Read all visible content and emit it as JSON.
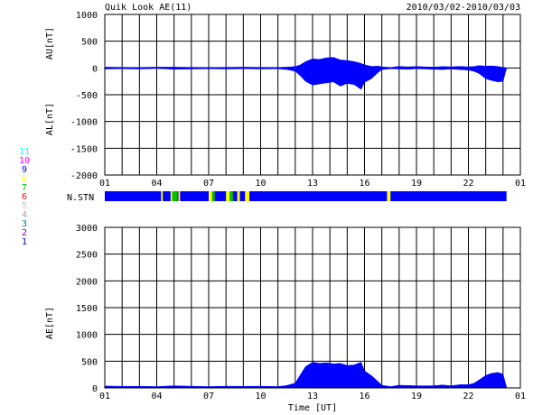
{
  "header": {
    "title": "Quik Look AE(11)",
    "date_range": "2010/03/02-2010/03/03"
  },
  "station_legend": {
    "labels": [
      "11",
      "10",
      "9",
      "8",
      "7",
      "6",
      "5",
      "4",
      "3",
      "2",
      "1"
    ],
    "colors": [
      "#00ffff",
      "#ff00ff",
      "#0000ff",
      "#ffff00",
      "#00c000",
      "#ff0000",
      "#c0c0c0",
      "#a0a0a0",
      "#008080",
      "#800080",
      "#0000c0"
    ]
  },
  "chart_data": [
    {
      "type": "area",
      "name": "AU/AL panel",
      "ylabel_upper": "AU[nT]",
      "ylabel_lower": "AL[nT]",
      "ylim": [
        -2000,
        1000
      ],
      "yticks": [
        1000,
        500,
        0,
        -500,
        -1000,
        -1500,
        -2000
      ],
      "xlim": [
        0,
        24
      ],
      "xticks": [
        "01",
        "04",
        "07",
        "10",
        "13",
        "16",
        "19",
        "22",
        "01"
      ],
      "grid": true,
      "fill_color": "#0000ff",
      "series": [
        {
          "name": "AU",
          "x": [
            0,
            1,
            2,
            3,
            4,
            5,
            6,
            7,
            8,
            9,
            10,
            10.5,
            11,
            11.3,
            11.6,
            12,
            12.4,
            12.8,
            13.2,
            13.6,
            14,
            14.4,
            14.8,
            15,
            15.4,
            15.8,
            16,
            16.5,
            17,
            17.5,
            18,
            18.5,
            19,
            19.5,
            20,
            20.5,
            21,
            21.3,
            21.6,
            22,
            22.3,
            22.7,
            23,
            23.2
          ],
          "values": [
            15,
            12,
            10,
            15,
            15,
            12,
            10,
            12,
            15,
            12,
            10,
            15,
            25,
            60,
            120,
            170,
            160,
            190,
            200,
            150,
            140,
            120,
            85,
            60,
            30,
            35,
            20,
            10,
            30,
            20,
            25,
            20,
            15,
            25,
            20,
            30,
            20,
            25,
            45,
            35,
            40,
            30,
            10,
            5
          ]
        },
        {
          "name": "AL",
          "x": [
            0,
            1,
            2,
            3,
            4,
            5,
            6,
            7,
            8,
            9,
            10,
            10.5,
            11,
            11.3,
            11.6,
            12,
            12.4,
            12.8,
            13.2,
            13.6,
            14,
            14.4,
            14.8,
            15,
            15.4,
            15.8,
            16,
            16.5,
            17,
            17.5,
            18,
            18.5,
            19,
            19.5,
            20,
            20.5,
            21,
            21.3,
            21.6,
            22,
            22.3,
            22.7,
            23,
            23.2
          ],
          "values": [
            -20,
            -15,
            -20,
            -10,
            -25,
            -20,
            -15,
            -20,
            -15,
            -20,
            -15,
            -30,
            -60,
            -150,
            -250,
            -320,
            -300,
            -280,
            -260,
            -340,
            -290,
            -310,
            -400,
            -270,
            -200,
            -80,
            -30,
            -15,
            -20,
            -25,
            -15,
            -20,
            -25,
            -30,
            -20,
            -30,
            -40,
            -60,
            -100,
            -200,
            -230,
            -260,
            -250,
            -10
          ]
        }
      ]
    },
    {
      "type": "bar",
      "name": "N.STN",
      "label": "N.STN",
      "xlim": [
        0,
        24
      ],
      "coverage_end": 23.2,
      "base_color": "#0000ff",
      "segments": [
        {
          "start": 3.25,
          "end": 3.35,
          "color": "#ffff00"
        },
        {
          "start": 3.8,
          "end": 3.9,
          "color": "#ffff00"
        },
        {
          "start": 3.9,
          "end": 4.2,
          "color": "#00c000"
        },
        {
          "start": 4.25,
          "end": 4.35,
          "color": "#ffff00"
        },
        {
          "start": 6.0,
          "end": 6.2,
          "color": "#ffff00"
        },
        {
          "start": 6.2,
          "end": 6.35,
          "color": "#00c000"
        },
        {
          "start": 7.0,
          "end": 7.2,
          "color": "#ffff00"
        },
        {
          "start": 7.2,
          "end": 7.4,
          "color": "#00c000"
        },
        {
          "start": 7.65,
          "end": 7.8,
          "color": "#ffff00"
        },
        {
          "start": 8.1,
          "end": 8.35,
          "color": "#ffff00"
        },
        {
          "start": 16.3,
          "end": 16.5,
          "color": "#ffff00"
        }
      ]
    },
    {
      "type": "area",
      "name": "AE panel",
      "ylabel": "AE[nT]",
      "xlabel": "Time [UT]",
      "ylim": [
        0,
        3000
      ],
      "yticks": [
        3000,
        2500,
        2000,
        1500,
        1000,
        500,
        0
      ],
      "xlim": [
        0,
        24
      ],
      "xticks": [
        "01",
        "04",
        "07",
        "10",
        "13",
        "16",
        "19",
        "22",
        "01"
      ],
      "grid": true,
      "fill_color": "#0000ff",
      "x": [
        0,
        1,
        2,
        3,
        4,
        5,
        6,
        7,
        8,
        9,
        10,
        10.5,
        11,
        11.3,
        11.6,
        12,
        12.4,
        12.8,
        13.2,
        13.6,
        14,
        14.4,
        14.8,
        15,
        15.4,
        15.8,
        16,
        16.5,
        17,
        17.5,
        18,
        18.5,
        19,
        19.5,
        20,
        20.5,
        21,
        21.3,
        21.6,
        22,
        22.3,
        22.7,
        23,
        23.2
      ],
      "values": [
        35,
        30,
        30,
        25,
        40,
        32,
        25,
        32,
        30,
        32,
        25,
        45,
        90,
        250,
        400,
        480,
        460,
        470,
        450,
        460,
        420,
        430,
        480,
        320,
        230,
        115,
        50,
        25,
        50,
        45,
        40,
        40,
        40,
        55,
        40,
        60,
        60,
        85,
        145,
        235,
        270,
        290,
        260,
        15
      ]
    }
  ]
}
